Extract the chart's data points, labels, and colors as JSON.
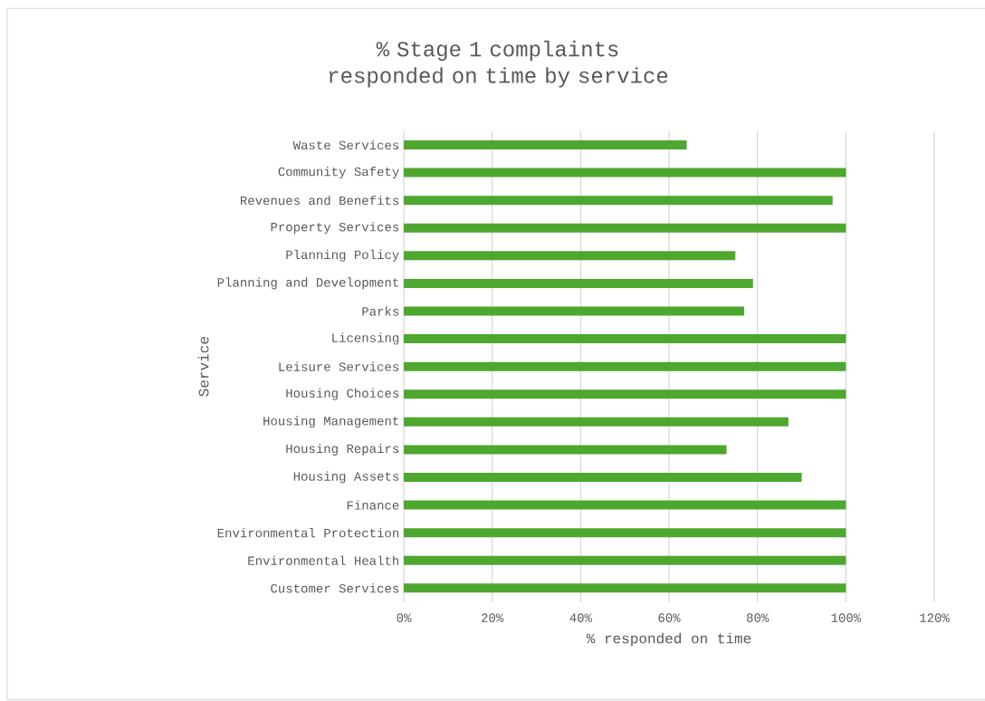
{
  "chart_data": {
    "type": "bar",
    "orientation": "horizontal",
    "title": "% Stage 1 complaints responded on time by service",
    "xlabel": "% responded on time",
    "ylabel": "Service",
    "categories": [
      "Waste Services",
      "Community Safety",
      "Revenues and Benefits",
      "Property Services",
      "Planning Policy",
      "Planning and Development",
      "Parks",
      "Licensing",
      "Leisure Services",
      "Housing Choices",
      "Housing Management",
      "Housing Repairs",
      "Housing Assets",
      "Finance",
      "Environmental Protection",
      "Environmental Health",
      "Customer Services"
    ],
    "values": [
      64,
      100,
      97,
      100,
      75,
      79,
      77,
      100,
      100,
      100,
      87,
      73,
      90,
      100,
      100,
      100,
      100
    ],
    "color": "#4ea72e",
    "xlim": [
      0,
      120
    ],
    "xticks": [
      {
        "value": 0,
        "label": "0%"
      },
      {
        "value": 20,
        "label": "20%"
      },
      {
        "value": 40,
        "label": "40%"
      },
      {
        "value": 60,
        "label": "60%"
      },
      {
        "value": 80,
        "label": "80%"
      },
      {
        "value": 100,
        "label": "100%"
      },
      {
        "value": 120,
        "label": "120%"
      }
    ],
    "grid": "x"
  }
}
